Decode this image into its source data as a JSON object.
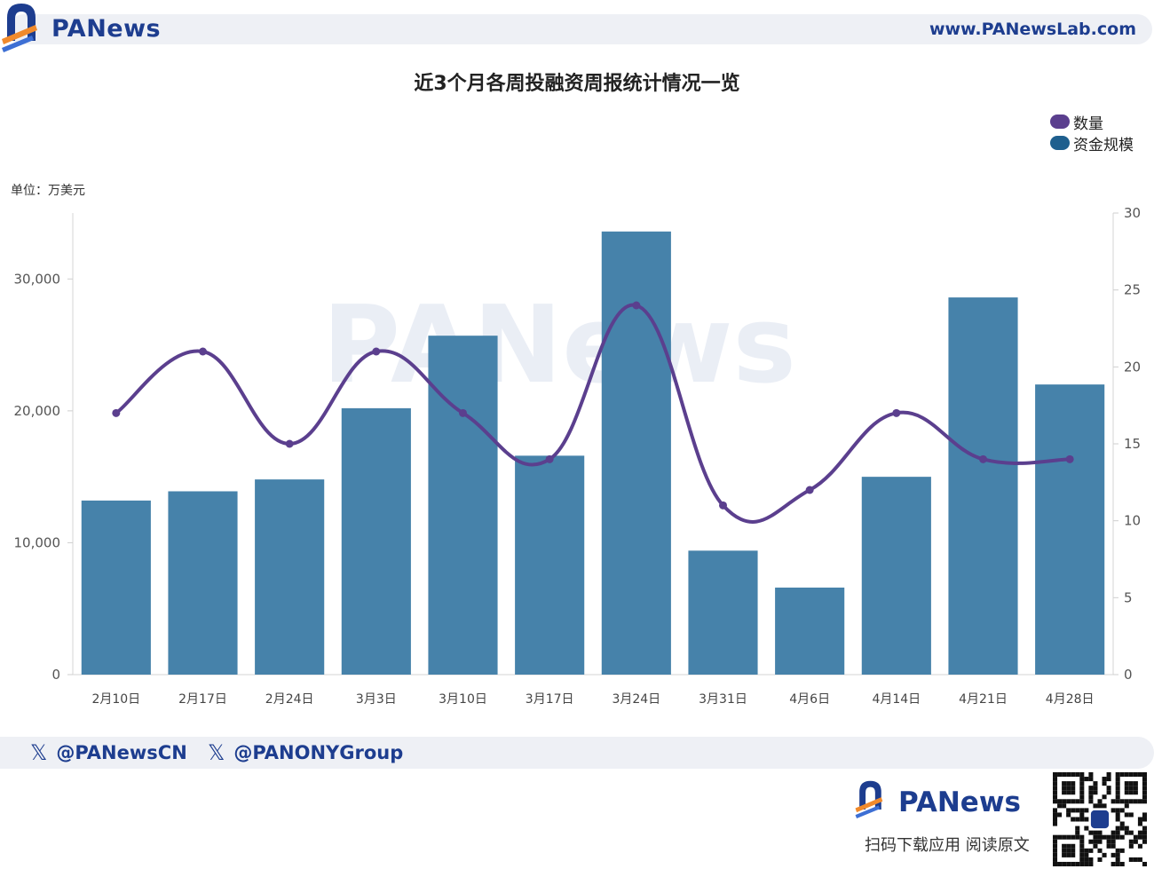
{
  "header": {
    "brand": "PANews",
    "url": "www.PANewsLab.com"
  },
  "footer": {
    "social": [
      "@PANewsCN",
      "@PANONYGroup"
    ],
    "brand": "PANews",
    "tagline": "扫码下载应用  阅读原文"
  },
  "colors": {
    "bar": "#4682aa",
    "line": "#5b3f8e",
    "brand": "#1d3d8f",
    "accent": "#f08a2c"
  },
  "chart_data": {
    "type": "bar",
    "title": "近3个月各周投融资周报统计情况一览",
    "unit_label": "单位：万美元",
    "categories": [
      "2月10日",
      "2月17日",
      "2月24日",
      "3月3日",
      "3月10日",
      "3月17日",
      "3月24日",
      "3月31日",
      "4月6日",
      "4月14日",
      "4月21日",
      "4月28日"
    ],
    "series": [
      {
        "name": "资金规模",
        "type": "bar",
        "axis": "left",
        "values": [
          13200,
          13900,
          14800,
          20200,
          25700,
          16600,
          33600,
          9400,
          6600,
          15000,
          28600,
          22000
        ]
      },
      {
        "name": "数量",
        "type": "line",
        "axis": "right",
        "smooth": true,
        "values": [
          17,
          21,
          15,
          21,
          17,
          14,
          24,
          11,
          12,
          17,
          14,
          14
        ]
      }
    ],
    "y_left": {
      "min": 0,
      "max": 35000,
      "ticks": [
        0,
        10000,
        20000,
        30000
      ],
      "tick_labels": [
        "0",
        "10,000",
        "20,000",
        "30,000"
      ]
    },
    "y_right": {
      "min": 0,
      "max": 30,
      "ticks": [
        0,
        5,
        10,
        15,
        20,
        25,
        30
      ],
      "tick_labels": [
        "0",
        "5",
        "10",
        "15",
        "20",
        "25",
        "30"
      ]
    },
    "legend": {
      "position": "top-right",
      "items": [
        "数量",
        "资金规模"
      ]
    },
    "grid": false,
    "watermark": "PANews"
  }
}
